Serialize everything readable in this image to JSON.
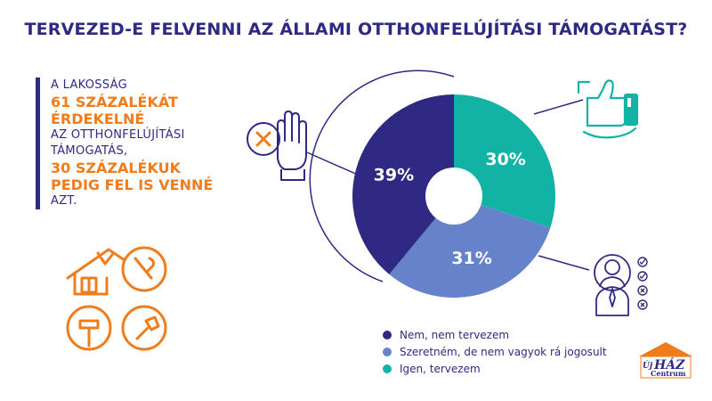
{
  "chart_data": {
    "type": "pie",
    "title": "TERVEZED-E FELVENNI AZ ÁLLAMI OTTHONFELÚJÍTÁSI TÁMOGATÁST?",
    "categories": [
      "Igen, tervezem",
      "Szeretném, de nem vagyok rá jogosult",
      "Nem, nem tervezem"
    ],
    "values": [
      30,
      31,
      39
    ],
    "value_labels": [
      "30%",
      "31%",
      "39%"
    ],
    "colors": [
      "#12b3a5",
      "#6683c9",
      "#2e2a84"
    ],
    "legend": {
      "position": "bottom-center",
      "items": [
        {
          "label": "Nem, nem tervezem",
          "color": "#2e2a84"
        },
        {
          "label": "Szeretném, de nem vagyok rá jogosult",
          "color": "#6683c9"
        },
        {
          "label": "Igen, tervezem",
          "color": "#12b3a5"
        }
      ]
    }
  },
  "callout": [
    {
      "text": "A LAKOSSÁG",
      "style": "n"
    },
    {
      "text": "61 SZÁZALÉKÁT",
      "style": "h"
    },
    {
      "text": "ÉRDEKELNÉ",
      "style": "h"
    },
    {
      "text": "AZ OTTHONFELÚJÍTÁSI",
      "style": "n"
    },
    {
      "text": "TÁMOGATÁS,",
      "style": "n"
    },
    {
      "text": "30 SZÁZALÉKUK",
      "style": "h"
    },
    {
      "text": "PEDIG FEL IS VENNÉ",
      "style": "h"
    },
    {
      "text": "AZT.",
      "style": "n"
    }
  ],
  "logo": {
    "word_small": "Új",
    "word_main": "HÁZ",
    "word_sub": "Centrum",
    "color": "#f07d1c",
    "text_color": "#2e2a84"
  },
  "icons": [
    "hand-stop-icon",
    "thumbs-up-icon",
    "person-checklist-icon",
    "house-tools-icon"
  ],
  "accent_colors": {
    "navy": "#2e2a84",
    "orange": "#f07d1c",
    "teal": "#12b3a5",
    "blue": "#6683c9"
  }
}
